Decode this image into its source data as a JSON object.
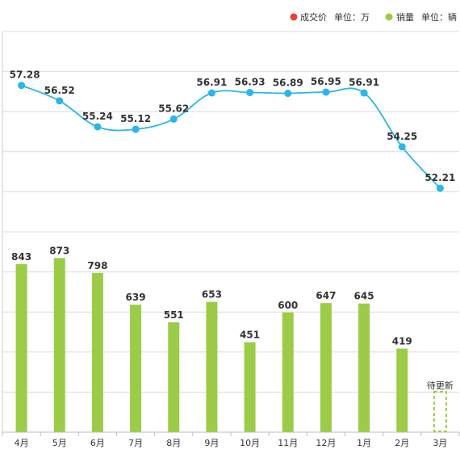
{
  "legend": {
    "price_label": "成交价",
    "price_unit": "单位：万",
    "sales_label": "销量",
    "sales_unit": "单位：辆"
  },
  "colors": {
    "price": "#29b6e8",
    "price_legend": "#e8413a",
    "sales": "#9ccc47"
  },
  "chart_data": {
    "type": "bar",
    "categories": [
      "4月",
      "5月",
      "6月",
      "7月",
      "8月",
      "9月",
      "10月",
      "11月",
      "12月",
      "1月",
      "2月",
      "3月"
    ],
    "series": [
      {
        "name": "销量",
        "type": "bar",
        "values": [
          843,
          873,
          798,
          639,
          551,
          653,
          451,
          600,
          647,
          645,
          419,
          null
        ]
      },
      {
        "name": "成交价",
        "type": "line",
        "values": [
          57.28,
          56.52,
          55.24,
          55.12,
          55.62,
          56.91,
          56.93,
          56.89,
          56.95,
          56.91,
          54.25,
          52.21
        ]
      }
    ],
    "pending_label": "待更新",
    "pending_category": "3月",
    "grid": true
  }
}
